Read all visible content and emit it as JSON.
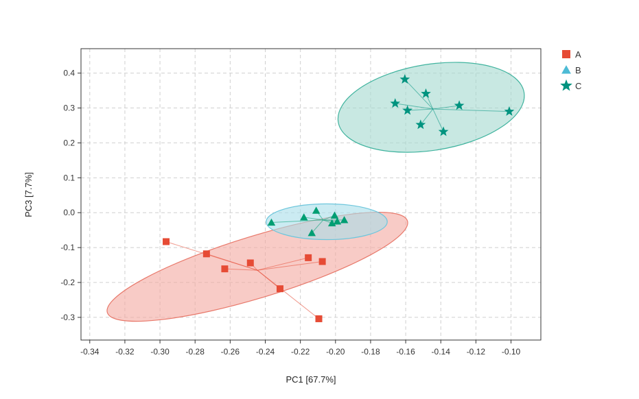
{
  "chart_data": {
    "type": "scatter",
    "title": "",
    "xlabel": "PC1 [67.7%]",
    "ylabel": "PC3 [7.7%]",
    "xlim": [
      -0.345,
      -0.083
    ],
    "ylim": [
      -0.365,
      0.47
    ],
    "x_ticks": [
      -0.34,
      -0.32,
      -0.3,
      -0.28,
      -0.26,
      -0.24,
      -0.22,
      -0.2,
      -0.18,
      -0.16,
      -0.14,
      -0.12,
      -0.1
    ],
    "x_tick_labels": [
      "-0.34",
      "-0.32",
      "-0.30",
      "-0.28",
      "-0.26",
      "-0.24",
      "-0.22",
      "-0.20",
      "-0.18",
      "-0.16",
      "-0.14",
      "-0.12",
      "-0.10"
    ],
    "y_ticks": [
      -0.3,
      -0.2,
      -0.1,
      0.0,
      0.1,
      0.2,
      0.3,
      0.4
    ],
    "y_tick_labels": [
      "-0.3",
      "-0.2",
      "-0.1",
      "0.0",
      "0.1",
      "0.2",
      "0.3",
      "0.4"
    ],
    "grid": true,
    "legend_position": "top-right",
    "series": [
      {
        "name": "A",
        "marker": "square",
        "color": "#E64B35",
        "ellipse_fill": "#F4A8A0",
        "ellipse_stroke": "#E8786A",
        "centroid": [
          -0.2445,
          -0.165
        ],
        "ellipse": {
          "cx": -0.2445,
          "cy": -0.155,
          "rx": 0.0894,
          "ry": 0.0885,
          "angle_deg": -17
        },
        "points": [
          {
            "x": -0.2965,
            "y": -0.083
          },
          {
            "x": -0.2735,
            "y": -0.118
          },
          {
            "x": -0.2631,
            "y": -0.161
          },
          {
            "x": -0.2485,
            "y": -0.144
          },
          {
            "x": -0.2316,
            "y": -0.218
          },
          {
            "x": -0.2155,
            "y": -0.129
          },
          {
            "x": -0.2075,
            "y": -0.14
          },
          {
            "x": -0.2095,
            "y": -0.304
          }
        ]
      },
      {
        "name": "B",
        "marker": "triangle",
        "color": "#009E73",
        "legend_color": "#4DBBD5",
        "ellipse_fill": "#A8DDEA",
        "ellipse_stroke": "#6CC6DC",
        "centroid": [
          -0.207,
          -0.021
        ],
        "ellipse": {
          "cx": -0.205,
          "cy": -0.026,
          "rx": 0.0345,
          "ry": 0.0512,
          "angle_deg": 0
        },
        "points": [
          {
            "x": -0.2365,
            "y": -0.028
          },
          {
            "x": -0.218,
            "y": -0.013
          },
          {
            "x": -0.211,
            "y": 0.006
          },
          {
            "x": -0.2135,
            "y": -0.058
          },
          {
            "x": -0.202,
            "y": -0.03
          },
          {
            "x": -0.2005,
            "y": -0.008
          },
          {
            "x": -0.199,
            "y": -0.025
          },
          {
            "x": -0.195,
            "y": -0.021
          }
        ]
      },
      {
        "name": "C",
        "marker": "star",
        "color": "#00937F",
        "ellipse_fill": "#A3D8CE",
        "ellipse_stroke": "#3FB39E",
        "centroid": [
          -0.1445,
          0.297
        ],
        "ellipse": {
          "cx": -0.1455,
          "cy": 0.302,
          "rx": 0.0536,
          "ry": 0.1233,
          "angle_deg": -9
        },
        "points": [
          {
            "x": -0.166,
            "y": 0.313
          },
          {
            "x": -0.1605,
            "y": 0.382
          },
          {
            "x": -0.159,
            "y": 0.293
          },
          {
            "x": -0.1515,
            "y": 0.252
          },
          {
            "x": -0.1485,
            "y": 0.341
          },
          {
            "x": -0.1385,
            "y": 0.232
          },
          {
            "x": -0.1295,
            "y": 0.307
          },
          {
            "x": -0.101,
            "y": 0.29
          }
        ]
      }
    ]
  }
}
